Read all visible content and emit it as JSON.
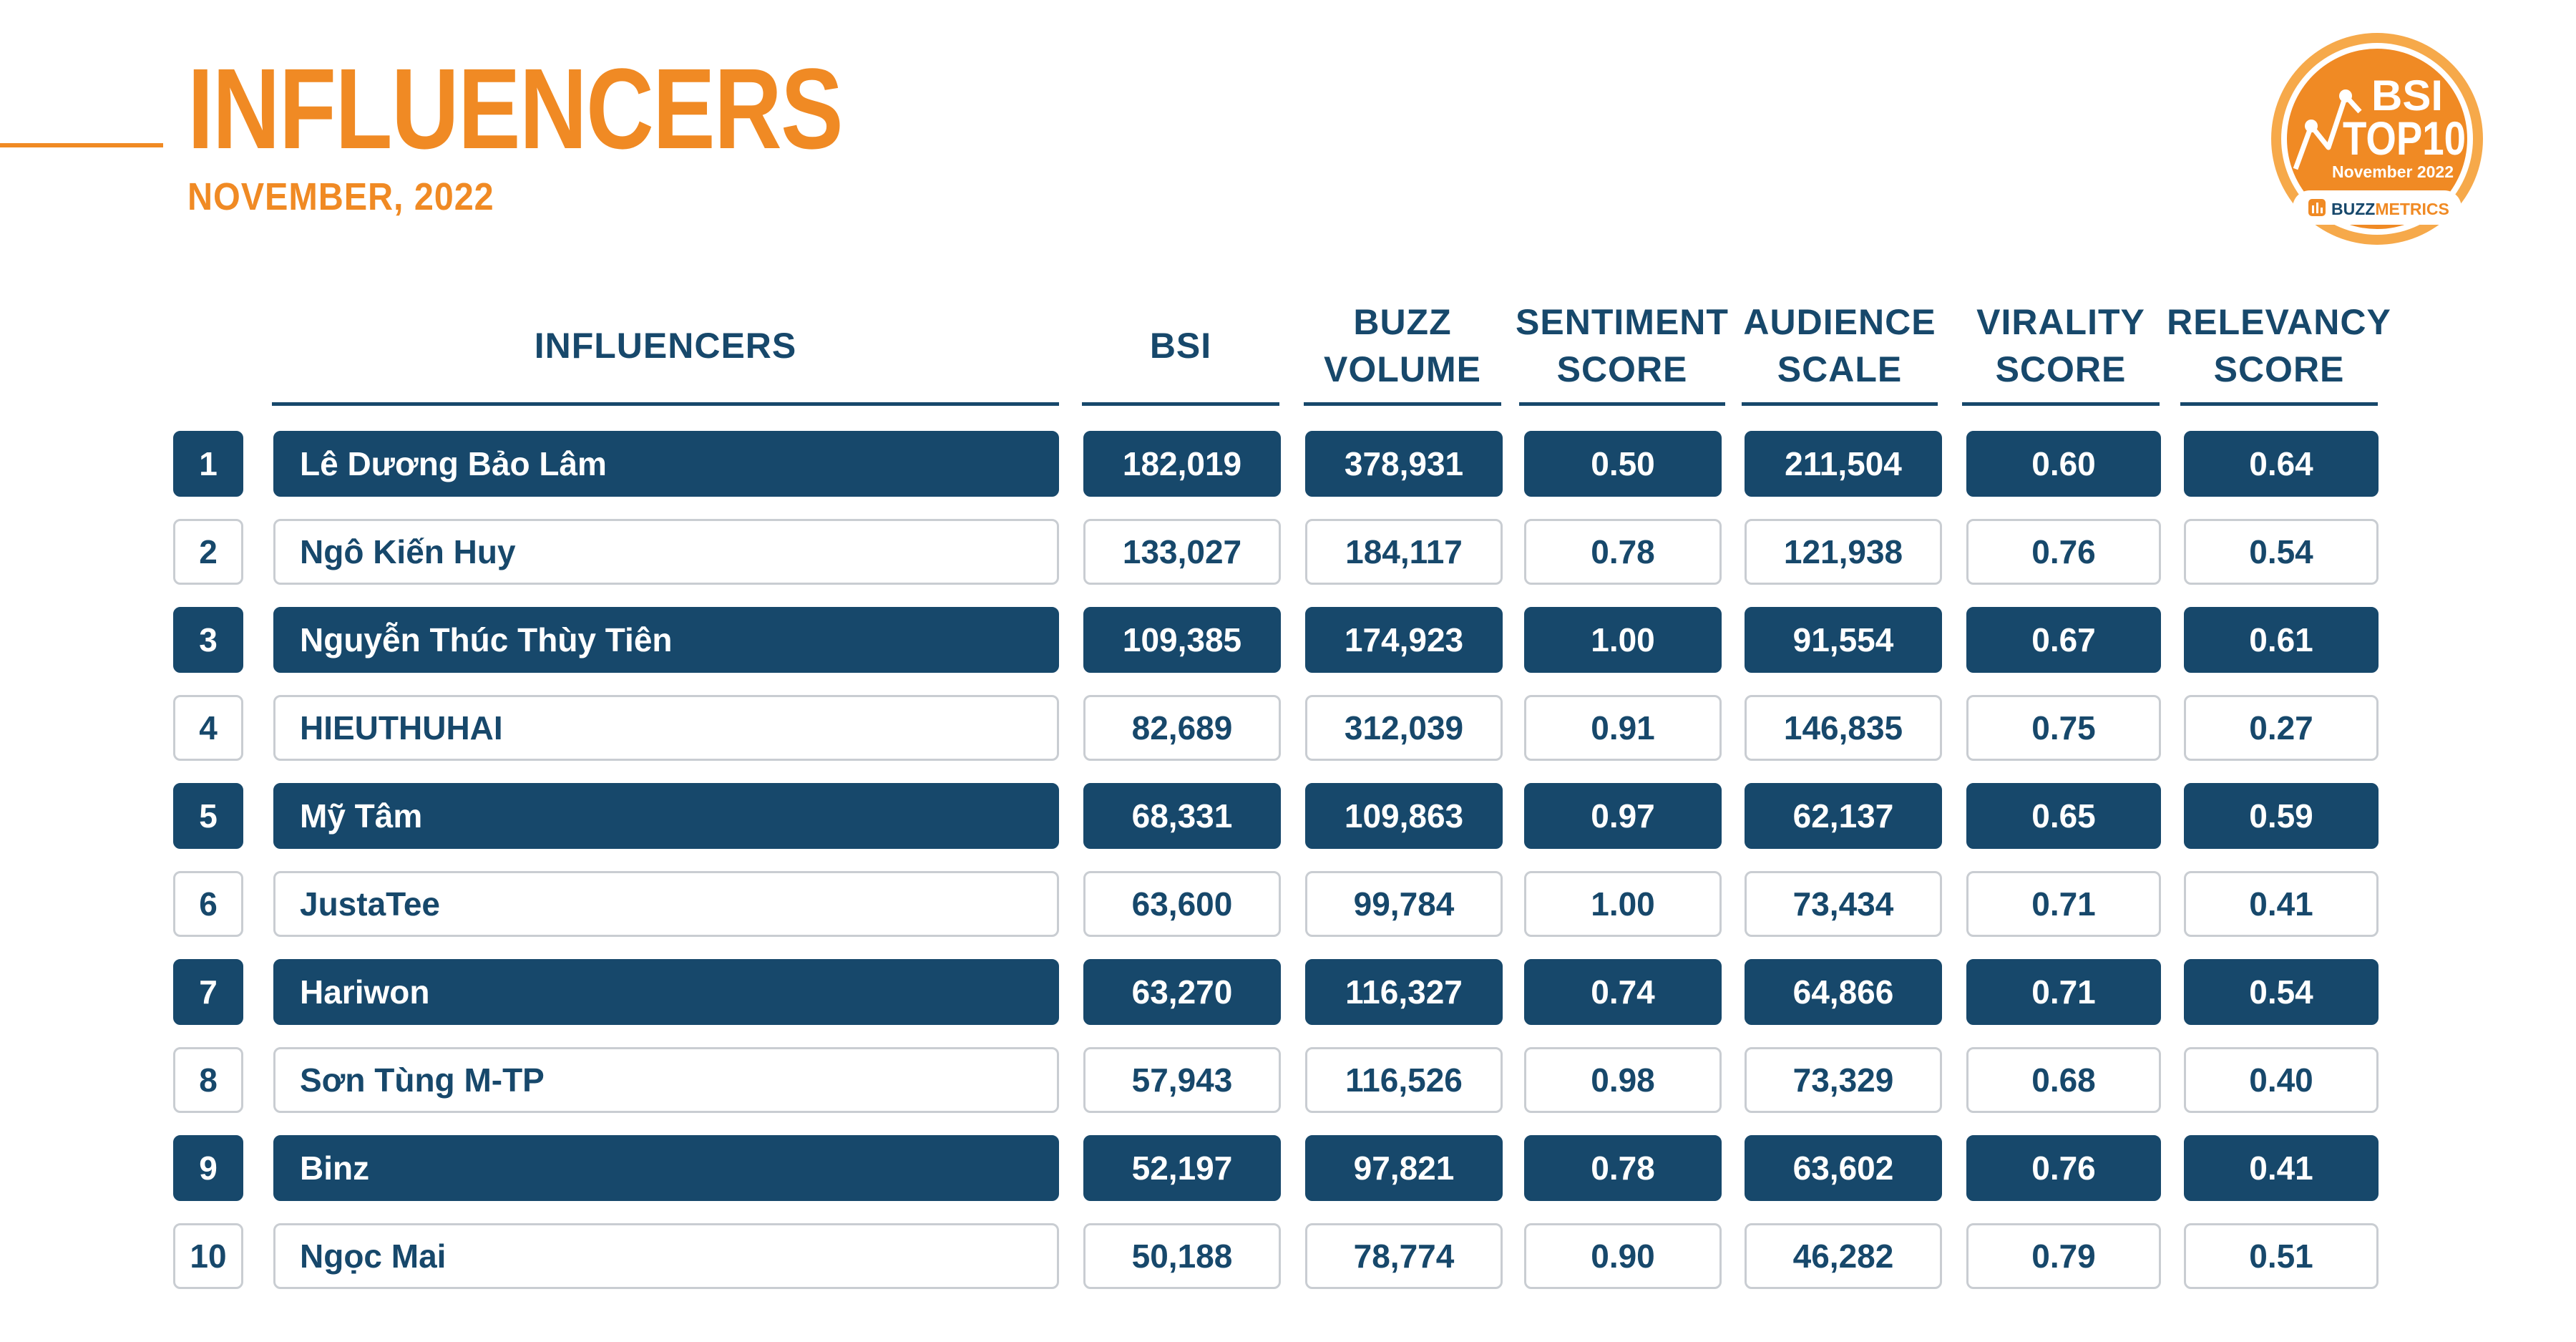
{
  "header": {
    "title": "INFLUENCERS",
    "subtitle": "NOVEMBER, 2022"
  },
  "badge": {
    "line1": "BSI",
    "line2": "TOP10",
    "date": "November 2022",
    "brand_bold": "BUZZ",
    "brand_rest": "METRICS"
  },
  "colors": {
    "accent": "#f08a24",
    "navy": "#17486b",
    "border": "#c9cdd2"
  },
  "table": {
    "columns": [
      {
        "key": "name",
        "label": "INFLUENCERS"
      },
      {
        "key": "bsi",
        "label": "BSI"
      },
      {
        "key": "buzz_volume",
        "label": "BUZZ\nVOLUME"
      },
      {
        "key": "sentiment_score",
        "label": "SENTIMENT\nSCORE"
      },
      {
        "key": "audience_scale",
        "label": "AUDIENCE\nSCALE"
      },
      {
        "key": "virality_score",
        "label": "VIRALITY\nSCORE"
      },
      {
        "key": "relevancy_score",
        "label": "RELEVANCY\nSCORE"
      }
    ],
    "rows": [
      {
        "rank": "1",
        "name": "Lê Dương Bảo Lâm",
        "bsi": "182,019",
        "buzz_volume": "378,931",
        "sentiment_score": "0.50",
        "audience_scale": "211,504",
        "virality_score": "0.60",
        "relevancy_score": "0.64"
      },
      {
        "rank": "2",
        "name": "Ngô Kiến Huy",
        "bsi": "133,027",
        "buzz_volume": "184,117",
        "sentiment_score": "0.78",
        "audience_scale": "121,938",
        "virality_score": "0.76",
        "relevancy_score": "0.54"
      },
      {
        "rank": "3",
        "name": "Nguyễn Thúc Thùy Tiên",
        "bsi": "109,385",
        "buzz_volume": "174,923",
        "sentiment_score": "1.00",
        "audience_scale": "91,554",
        "virality_score": "0.67",
        "relevancy_score": "0.61"
      },
      {
        "rank": "4",
        "name": "HIEUTHUHAI",
        "bsi": "82,689",
        "buzz_volume": "312,039",
        "sentiment_score": "0.91",
        "audience_scale": "146,835",
        "virality_score": "0.75",
        "relevancy_score": "0.27"
      },
      {
        "rank": "5",
        "name": "Mỹ Tâm",
        "bsi": "68,331",
        "buzz_volume": "109,863",
        "sentiment_score": "0.97",
        "audience_scale": "62,137",
        "virality_score": "0.65",
        "relevancy_score": "0.59"
      },
      {
        "rank": "6",
        "name": "JustaTee",
        "bsi": "63,600",
        "buzz_volume": "99,784",
        "sentiment_score": "1.00",
        "audience_scale": "73,434",
        "virality_score": "0.71",
        "relevancy_score": "0.41"
      },
      {
        "rank": "7",
        "name": "Hariwon",
        "bsi": "63,270",
        "buzz_volume": "116,327",
        "sentiment_score": "0.74",
        "audience_scale": "64,866",
        "virality_score": "0.71",
        "relevancy_score": "0.54"
      },
      {
        "rank": "8",
        "name": "Sơn Tùng M-TP",
        "bsi": "57,943",
        "buzz_volume": "116,526",
        "sentiment_score": "0.98",
        "audience_scale": "73,329",
        "virality_score": "0.68",
        "relevancy_score": "0.40"
      },
      {
        "rank": "9",
        "name": "Binz",
        "bsi": "52,197",
        "buzz_volume": "97,821",
        "sentiment_score": "0.78",
        "audience_scale": "63,602",
        "virality_score": "0.76",
        "relevancy_score": "0.41"
      },
      {
        "rank": "10",
        "name": "Ngọc Mai",
        "bsi": "50,188",
        "buzz_volume": "78,774",
        "sentiment_score": "0.90",
        "audience_scale": "46,282",
        "virality_score": "0.79",
        "relevancy_score": "0.51"
      }
    ]
  }
}
